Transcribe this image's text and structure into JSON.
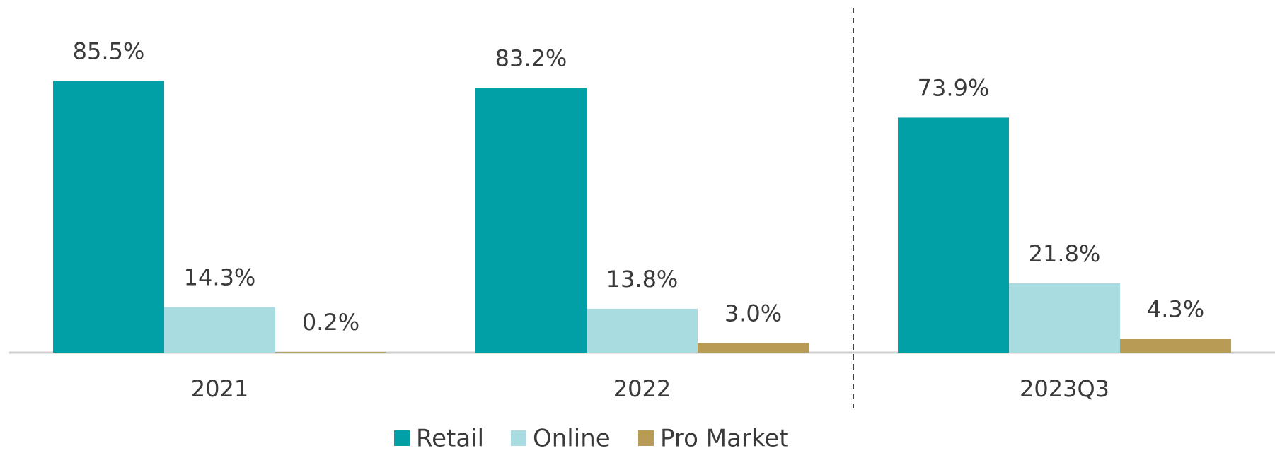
{
  "chart_data": {
    "type": "bar",
    "categories": [
      "2021",
      "2022",
      "2023Q3"
    ],
    "series": [
      {
        "name": "Retail",
        "color": "#00a0a6",
        "values": [
          85.5,
          83.2,
          73.9
        ],
        "value_labels": [
          "85.5%",
          "83.2%",
          "73.9%"
        ]
      },
      {
        "name": "Online",
        "color": "#a8dce0",
        "values": [
          14.3,
          13.8,
          21.8
        ],
        "value_labels": [
          "14.3%",
          "13.8%",
          "21.8%"
        ]
      },
      {
        "name": "Pro Market",
        "color": "#b89b55",
        "values": [
          0.2,
          3.0,
          4.3
        ],
        "value_labels": [
          "0.2%",
          "3.0%",
          "4.3%"
        ]
      }
    ],
    "legend": "bottom"
  }
}
